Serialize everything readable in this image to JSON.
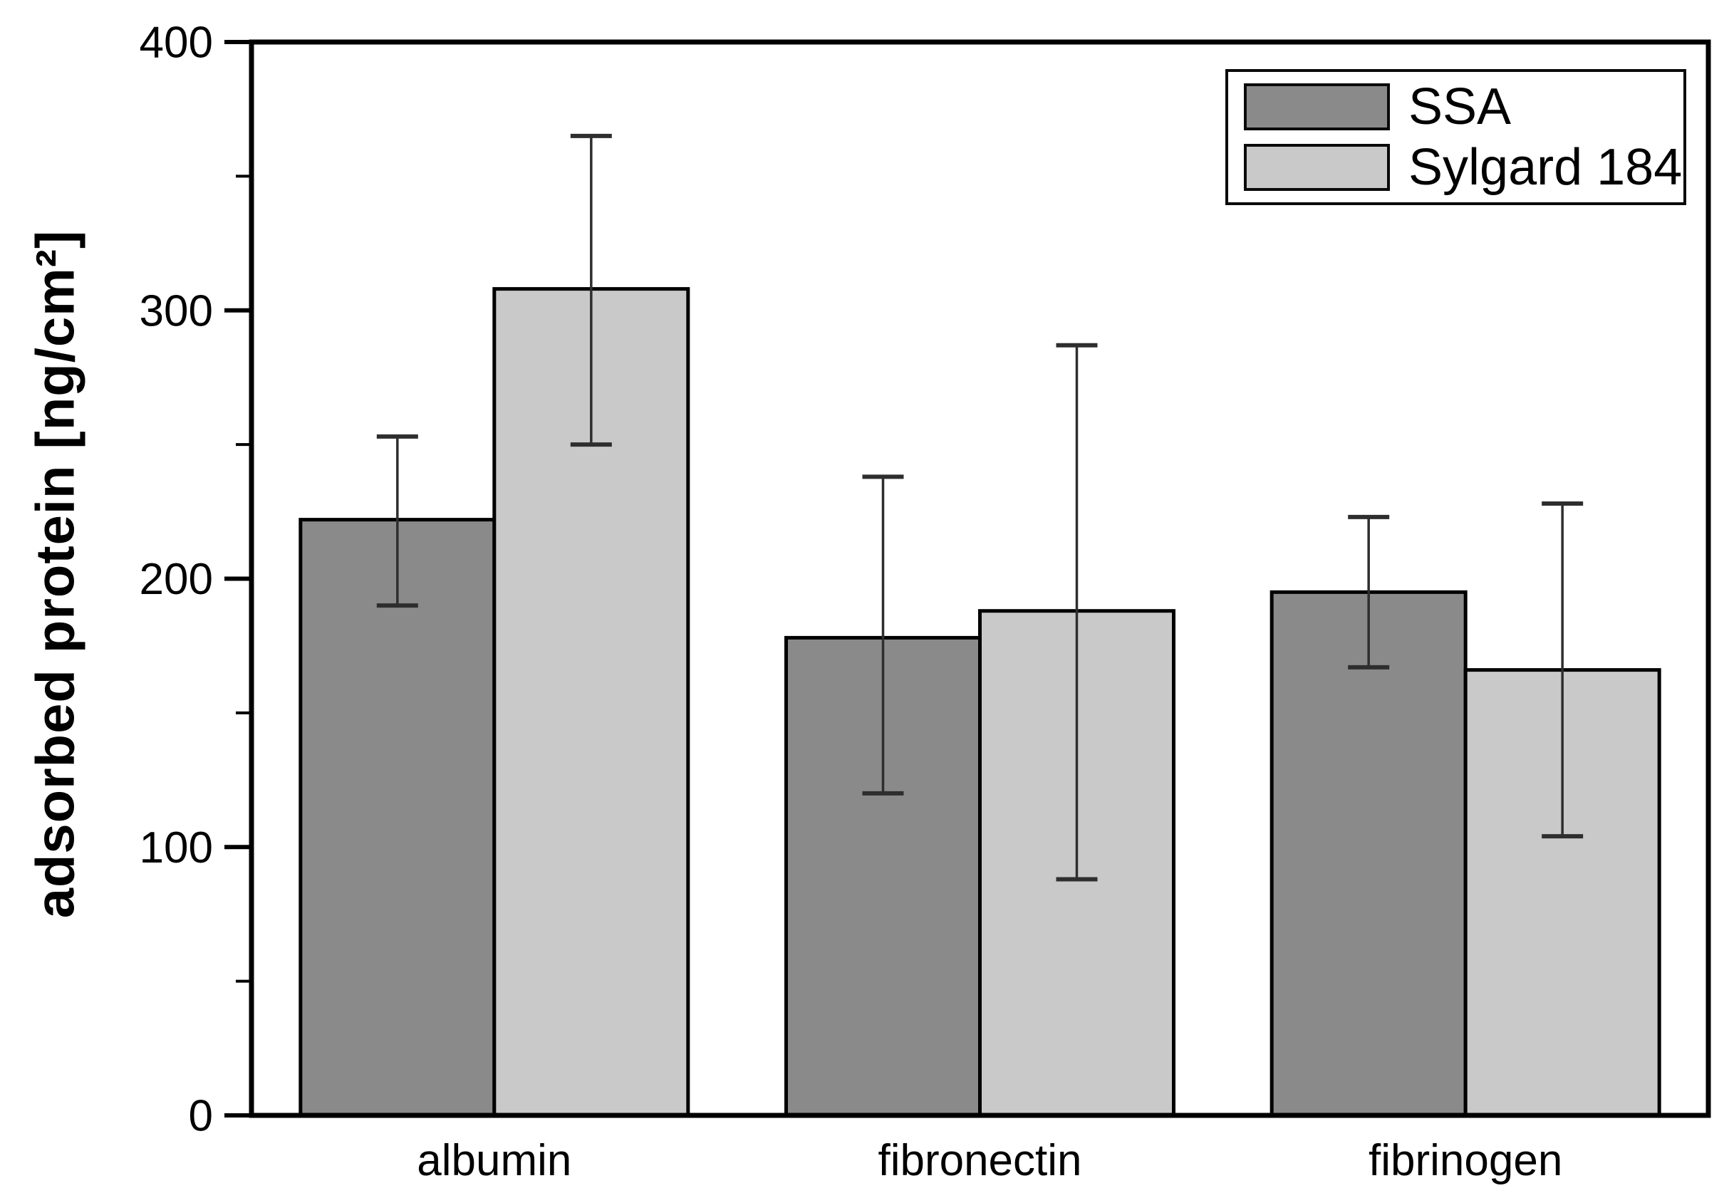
{
  "chart_data": {
    "type": "bar",
    "title": "",
    "ylabel": "adsorbed protein [ng/cm²]",
    "xlabel": "",
    "categories": [
      "albumin",
      "fibronectin",
      "fibrinogen"
    ],
    "series": [
      {
        "name": "SSA",
        "color": "#8a8a8a",
        "values": [
          222,
          178,
          195
        ],
        "error_low": [
          190,
          120,
          167
        ],
        "error_high": [
          253,
          238,
          223
        ]
      },
      {
        "name": "Sylgard 184",
        "color": "#c9c9c9",
        "values": [
          308,
          188,
          166
        ],
        "error_low": [
          250,
          88,
          104
        ],
        "error_high": [
          365,
          287,
          228
        ]
      }
    ],
    "ylim": [
      0,
      400
    ],
    "yticks": [
      0,
      100,
      200,
      300,
      400
    ],
    "minor_tick_step": 50,
    "grid": false,
    "legend_position": "top-right",
    "error_bars": true,
    "bar_edge_color": "#000000",
    "frame_color": "#000000",
    "error_bar_color": "#2e2e2e",
    "background": "#ffffff"
  }
}
